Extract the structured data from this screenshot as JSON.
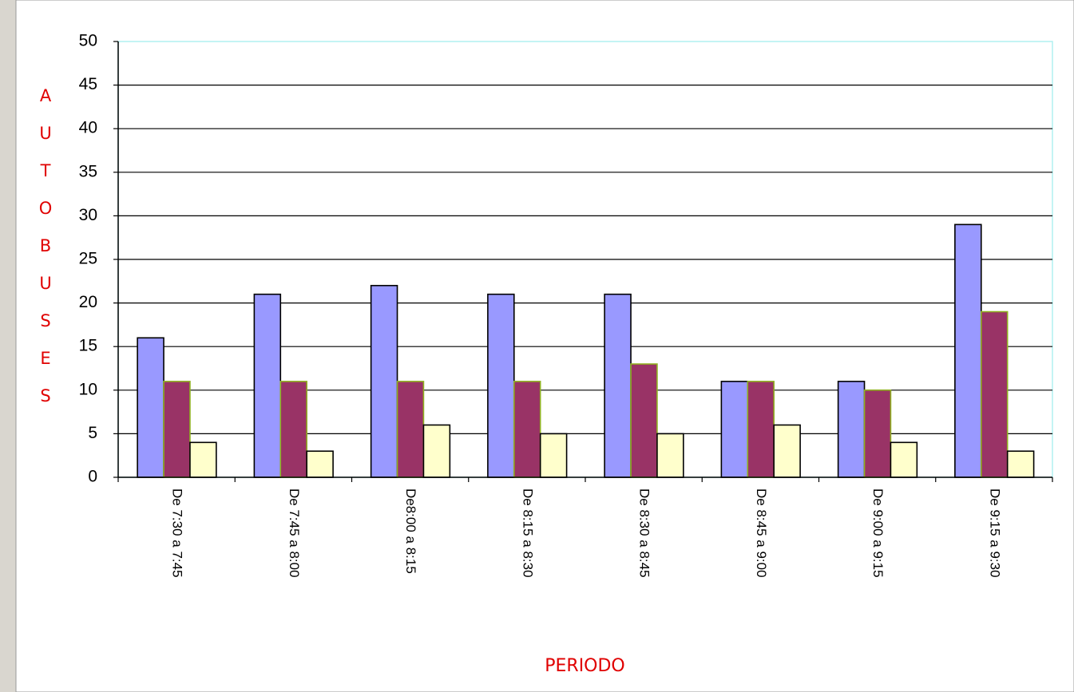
{
  "chart_data": {
    "type": "bar",
    "x_label": "PERIODO",
    "y_label": "AUTOBUSES",
    "categories": [
      "De 7:30 a 7:45",
      "De 7:45 a 8:00",
      "De8:00 a 8:15",
      "De 8:15 a 8:30",
      "De 8:30 a 8:45",
      "De 8:45 a 9:00",
      "De 9:00 a 9:15",
      "De 9:15 a 9:30"
    ],
    "series": [
      {
        "color": "#9999ff",
        "values": [
          16,
          21,
          22,
          21,
          21,
          11,
          11,
          29
        ]
      },
      {
        "color": "#993366",
        "values": [
          11,
          11,
          11,
          11,
          13,
          11,
          10,
          19
        ]
      },
      {
        "color": "#ffffcc",
        "values": [
          4,
          3,
          6,
          5,
          5,
          6,
          4,
          3
        ]
      }
    ],
    "ylim": [
      0,
      50
    ],
    "yticks": [
      0,
      5,
      10,
      15,
      20,
      25,
      30,
      35,
      40,
      45,
      50
    ],
    "grid": true
  }
}
